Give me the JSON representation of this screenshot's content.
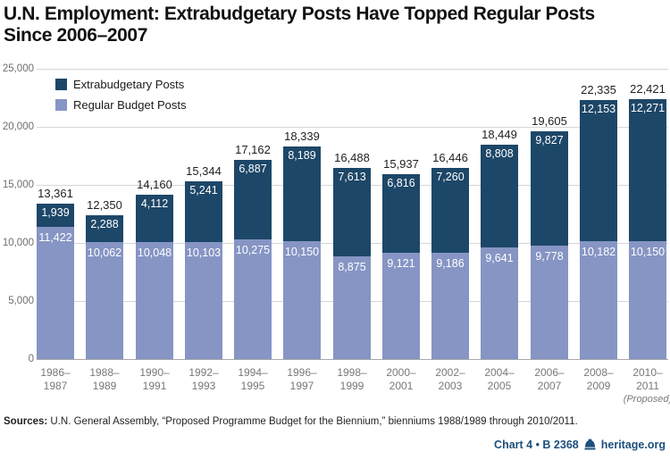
{
  "title": {
    "line1": "U.N. Employment: Extrabudgetary Posts Have Topped Regular Posts",
    "line2": "Since 2006–2007"
  },
  "legend": [
    {
      "label": "Extrabudgetary Posts",
      "color": "#1d4768"
    },
    {
      "label": "Regular Budget Posts",
      "color": "#8695c4"
    }
  ],
  "chart_data": {
    "type": "bar",
    "stacked": true,
    "title": "U.N. Employment: Extrabudgetary Posts Have Topped Regular Posts Since 2006–2007",
    "xlabel": "",
    "ylabel": "",
    "ylim": [
      0,
      25000
    ],
    "yticks": [
      0,
      5000,
      10000,
      15000,
      20000,
      25000
    ],
    "ytick_labels": [
      "0",
      "5,000",
      "10,000",
      "15,000",
      "20,000",
      "25,000"
    ],
    "grid": true,
    "legend_position": "top-left",
    "categories": [
      {
        "line1": "1986–",
        "line2": "1987",
        "note": ""
      },
      {
        "line1": "1988–",
        "line2": "1989",
        "note": ""
      },
      {
        "line1": "1990–",
        "line2": "1991",
        "note": ""
      },
      {
        "line1": "1992–",
        "line2": "1993",
        "note": ""
      },
      {
        "line1": "1994–",
        "line2": "1995",
        "note": ""
      },
      {
        "line1": "1996–",
        "line2": "1997",
        "note": ""
      },
      {
        "line1": "1998–",
        "line2": "1999",
        "note": ""
      },
      {
        "line1": "2000–",
        "line2": "2001",
        "note": ""
      },
      {
        "line1": "2002–",
        "line2": "2003",
        "note": ""
      },
      {
        "line1": "2004–",
        "line2": "2005",
        "note": ""
      },
      {
        "line1": "2006–",
        "line2": "2007",
        "note": ""
      },
      {
        "line1": "2008–",
        "line2": "2009",
        "note": ""
      },
      {
        "line1": "2010–",
        "line2": "2011",
        "note": "(Proposed)"
      }
    ],
    "series": [
      {
        "name": "Extrabudgetary Posts",
        "color": "#1d4768",
        "values": [
          1939,
          2288,
          4112,
          5241,
          6887,
          8189,
          7613,
          6816,
          7260,
          8808,
          9827,
          12153,
          12271
        ]
      },
      {
        "name": "Regular Budget Posts",
        "color": "#8695c4",
        "values": [
          11422,
          10062,
          10048,
          10103,
          10275,
          10150,
          8875,
          9121,
          9186,
          9641,
          9778,
          10182,
          10150
        ]
      }
    ],
    "totals": [
      13361,
      12350,
      14160,
      15344,
      17162,
      18339,
      16488,
      15937,
      16446,
      18449,
      19605,
      22335,
      22421
    ]
  },
  "colors": {
    "gridline": "#d6d6d6",
    "baseline": "#a6a8ab",
    "tick_text": "#6d6e71",
    "accent_blue": "#1c4f7c"
  },
  "source": {
    "label": "Sources:",
    "text": "U.N. General Assembly, “Proposed Programme Budget for the Biennium,” bienniums 1988/1989 through 2010/2011."
  },
  "footer": {
    "chart_ref": "Chart 4 • B 2368",
    "site": "heritage.org",
    "logo": "liberty-bell-icon"
  }
}
